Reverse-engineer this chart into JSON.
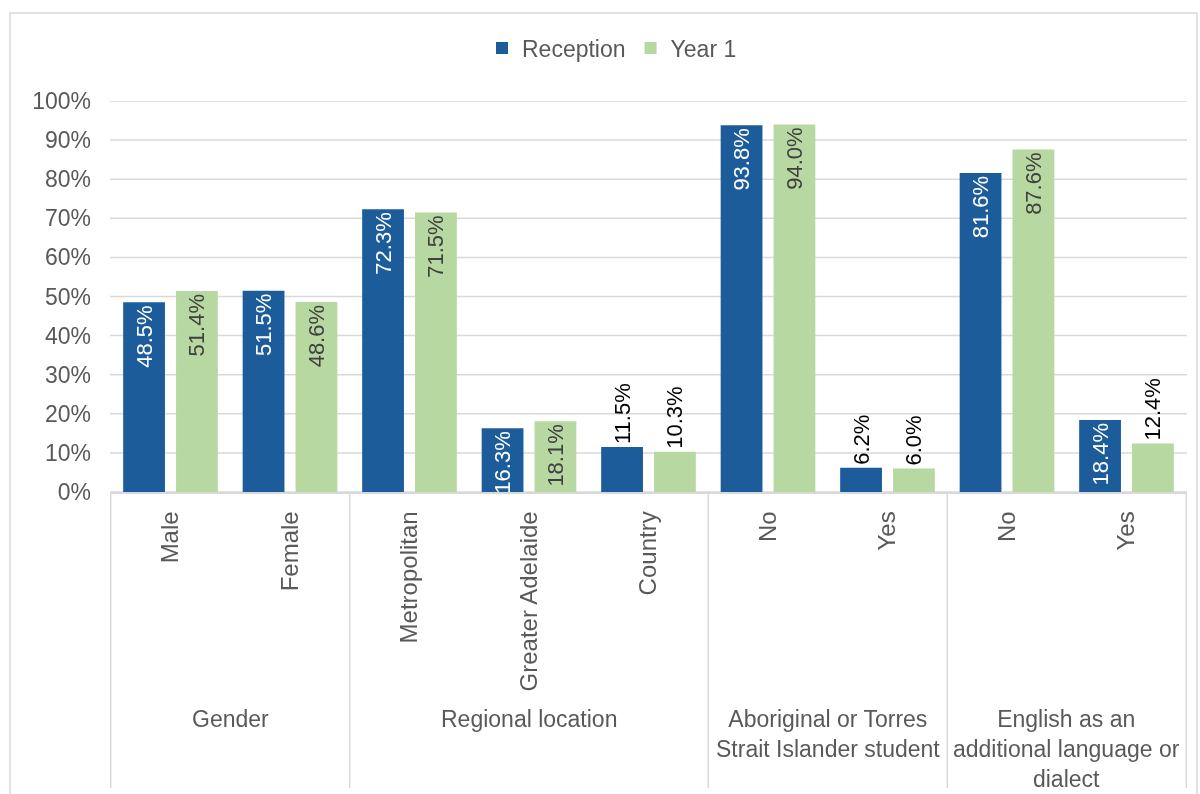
{
  "chart_data": {
    "type": "bar",
    "categories": [
      "Male",
      "Female",
      "Metropolitan",
      "Greater Adelaide",
      "Country",
      "No",
      "Yes",
      "No",
      "Yes"
    ],
    "series": [
      {
        "name": "Reception",
        "color": "#1c5c9a",
        "values": [
          48.5,
          51.5,
          72.3,
          16.3,
          11.5,
          93.8,
          6.2,
          81.6,
          18.4
        ],
        "value_labels": [
          "48.5%",
          "51.5%",
          "72.3%",
          "16.3%",
          "11.5%",
          "93.8%",
          "6.2%",
          "81.6%",
          "18.4%"
        ]
      },
      {
        "name": "Year 1",
        "color": "#b7d8a0",
        "values": [
          51.4,
          48.6,
          71.5,
          18.1,
          10.3,
          94.0,
          6.0,
          87.6,
          12.4
        ],
        "value_labels": [
          "51.4%",
          "48.6%",
          "71.5%",
          "18.1%",
          "10.3%",
          "94.0%",
          "6.0%",
          "87.6%",
          "12.4%"
        ]
      }
    ],
    "ylim": [
      0,
      100
    ],
    "yticks": [
      {
        "value": 0,
        "label": "0%"
      },
      {
        "value": 10,
        "label": "10%"
      },
      {
        "value": 20,
        "label": "20%"
      },
      {
        "value": 30,
        "label": "30%"
      },
      {
        "value": 40,
        "label": "40%"
      },
      {
        "value": 50,
        "label": "50%"
      },
      {
        "value": 60,
        "label": "60%"
      },
      {
        "value": 70,
        "label": "70%"
      },
      {
        "value": 80,
        "label": "80%"
      },
      {
        "value": 90,
        "label": "90%"
      },
      {
        "value": 100,
        "label": "100%"
      }
    ],
    "grid": "y",
    "legend": "top",
    "annotations": [
      "Gender",
      "Regional location",
      "Aboriginal or Torres Strait Islander student",
      "English as an additional language or dialect"
    ]
  }
}
